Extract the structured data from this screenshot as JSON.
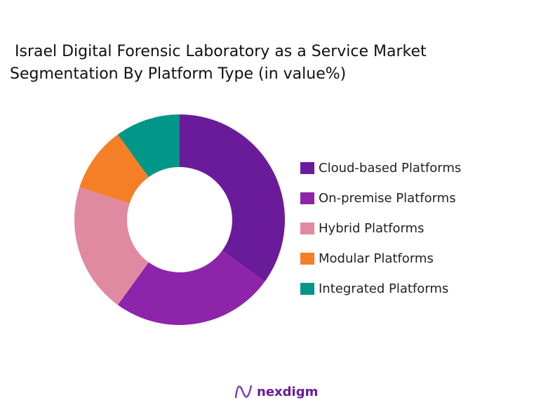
{
  "chart_data": {
    "type": "pie",
    "donut": true,
    "title": [
      " Israel Digital Forensic Laboratory as a Service Market",
      "Segmentation By Platform Type (in value%)"
    ],
    "categories": [
      "Cloud-based Platforms",
      "On-premise Platforms",
      "Hybrid Platforms",
      "Modular Platforms",
      "Integrated Platforms"
    ],
    "values": [
      35,
      25,
      20,
      10,
      10
    ],
    "colors": [
      "#6a1b9a",
      "#8e24aa",
      "#df8aa1",
      "#f57f26",
      "#009688"
    ],
    "legend_position": "right"
  },
  "logo": {
    "text": "nexdigm"
  }
}
